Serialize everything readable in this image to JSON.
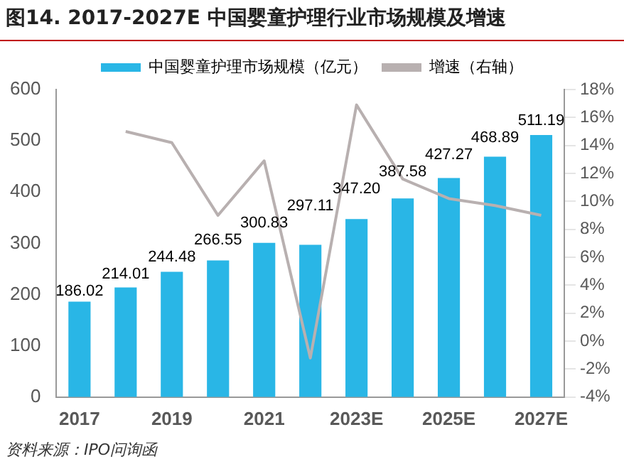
{
  "chart_data": {
    "type": "bar",
    "title": "图14. 2017-2027E 中国婴童护理行业市场规模及增速",
    "categories": [
      "2017",
      null,
      "2019",
      null,
      "2021",
      null,
      "2023E",
      null,
      "2025E",
      null,
      "2027E"
    ],
    "series": [
      {
        "name": "中国婴童护理市场规模（亿元）",
        "color": "#29b6e6",
        "values": [
          186.02,
          214.01,
          244.48,
          266.55,
          300.83,
          297.11,
          347.2,
          387.58,
          427.27,
          468.89,
          511.19
        ],
        "value_labels": [
          "186.02",
          "214.01",
          "244.48",
          "266.55",
          "300.83",
          "297.11",
          "347.20",
          "387.58",
          "427.27",
          "468.89",
          "511.19"
        ]
      },
      {
        "name": "增速（右轴）",
        "type": "line",
        "axis": "y2",
        "color": "#b8b0b0",
        "values": [
          null,
          15.0,
          14.2,
          9.0,
          12.9,
          -1.2,
          16.9,
          11.6,
          10.2,
          9.7,
          9.0
        ]
      }
    ],
    "ylim": [
      0,
      600
    ],
    "yticks": [
      0,
      100,
      200,
      300,
      400,
      500,
      600
    ],
    "y2lim": [
      -4,
      18
    ],
    "y2ticks": [
      {
        "value": -4,
        "label": "-4%"
      },
      {
        "value": -2,
        "label": "-2%"
      },
      {
        "value": 0,
        "label": "0%"
      },
      {
        "value": 2,
        "label": "2%"
      },
      {
        "value": 4,
        "label": "4%"
      },
      {
        "value": 6,
        "label": "6%"
      },
      {
        "value": 8,
        "label": "8%"
      },
      {
        "value": 10,
        "label": "10%"
      },
      {
        "value": 12,
        "label": "12%"
      },
      {
        "value": 14,
        "label": "14%"
      },
      {
        "value": 16,
        "label": "16%"
      },
      {
        "value": 18,
        "label": "18%"
      }
    ],
    "grid": false,
    "legend": "top",
    "marker": "none",
    "annotations": [
      "资料来源：IPO问询函"
    ]
  }
}
